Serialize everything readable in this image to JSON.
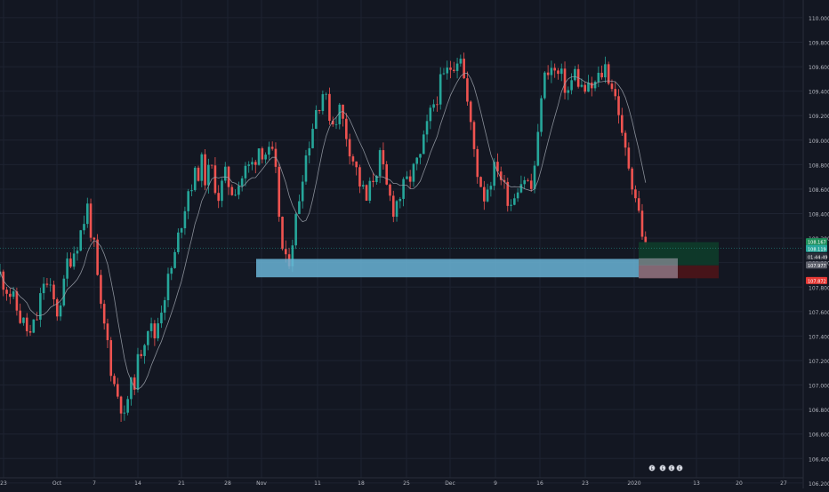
{
  "chart_data": {
    "type": "candlestick",
    "instrument_note": "",
    "ylim": [
      106.17,
      110.13
    ],
    "y_ticks": [
      "110.000",
      "109.800",
      "109.600",
      "109.400",
      "109.200",
      "109.000",
      "108.800",
      "108.600",
      "108.400",
      "108.200",
      "108.000",
      "107.800",
      "107.600",
      "107.400",
      "107.200",
      "107.000",
      "106.800",
      "106.600",
      "106.400",
      "106.200"
    ],
    "x_ticks": [
      "23",
      "Oct",
      "7",
      "14",
      "21",
      "28",
      "Nov",
      "11",
      "18",
      "25",
      "Dec",
      "9",
      "16",
      "23",
      "2020",
      "13",
      "20",
      "27"
    ],
    "grid": true,
    "colors": {
      "background": "#131722",
      "grid": "#1e2331",
      "up": "#26a69a",
      "down": "#ef5350",
      "moving_average": "#9ea3ad",
      "demand_zone": "#6ab4d6",
      "profit_zone": "#0e3a2a",
      "loss_zone": "#4a1419",
      "axis_text": "#b2b5be"
    },
    "price_path": [
      [
        0,
        107.9
      ],
      [
        3,
        107.75
      ],
      [
        6,
        107.55
      ],
      [
        9,
        107.4
      ],
      [
        11,
        107.55
      ],
      [
        13,
        107.85
      ],
      [
        15,
        107.75
      ],
      [
        17,
        107.6
      ],
      [
        19,
        107.8
      ],
      [
        20,
        108.0
      ],
      [
        22,
        108.1
      ],
      [
        24,
        108.25
      ],
      [
        26,
        108.45
      ],
      [
        28,
        108.1
      ],
      [
        30,
        107.6
      ],
      [
        32,
        107.35
      ],
      [
        33,
        107.15
      ],
      [
        34,
        107.0
      ],
      [
        36,
        106.85
      ],
      [
        37,
        106.7
      ],
      [
        38,
        106.9
      ],
      [
        40,
        107.05
      ],
      [
        42,
        107.3
      ],
      [
        44,
        107.5
      ],
      [
        46,
        107.4
      ],
      [
        48,
        107.65
      ],
      [
        50,
        107.85
      ],
      [
        52,
        108.05
      ],
      [
        54,
        108.35
      ],
      [
        56,
        108.6
      ],
      [
        58,
        108.7
      ],
      [
        60,
        108.8
      ],
      [
        61,
        108.7
      ],
      [
        63,
        108.75
      ],
      [
        65,
        108.55
      ],
      [
        67,
        108.7
      ],
      [
        69,
        108.6
      ],
      [
        71,
        108.65
      ],
      [
        73,
        108.75
      ],
      [
        75,
        108.8
      ],
      [
        77,
        108.95
      ],
      [
        79,
        108.9
      ],
      [
        81,
        108.85
      ],
      [
        82,
        108.7
      ],
      [
        83,
        108.4
      ],
      [
        84,
        108.1
      ],
      [
        85,
        107.98
      ],
      [
        86,
        108.05
      ],
      [
        88,
        108.35
      ],
      [
        90,
        108.75
      ],
      [
        92,
        109.0
      ],
      [
        94,
        109.25
      ],
      [
        96,
        109.4
      ],
      [
        97,
        109.3
      ],
      [
        99,
        109.15
      ],
      [
        101,
        109.25
      ],
      [
        103,
        109.05
      ],
      [
        105,
        108.85
      ],
      [
        107,
        108.65
      ],
      [
        109,
        108.5
      ],
      [
        111,
        108.7
      ],
      [
        113,
        108.85
      ],
      [
        115,
        108.6
      ],
      [
        117,
        108.45
      ],
      [
        119,
        108.55
      ],
      [
        121,
        108.65
      ],
      [
        123,
        108.75
      ],
      [
        125,
        108.85
      ],
      [
        127,
        109.1
      ],
      [
        129,
        109.3
      ],
      [
        131,
        109.45
      ],
      [
        133,
        109.55
      ],
      [
        135,
        109.65
      ],
      [
        137,
        109.72
      ],
      [
        138,
        109.5
      ],
      [
        140,
        109.1
      ],
      [
        142,
        108.75
      ],
      [
        144,
        108.55
      ],
      [
        146,
        108.7
      ],
      [
        148,
        108.8
      ],
      [
        150,
        108.6
      ],
      [
        152,
        108.5
      ],
      [
        154,
        108.65
      ],
      [
        156,
        108.7
      ],
      [
        158,
        108.6
      ],
      [
        160,
        109.0
      ],
      [
        161,
        109.4
      ],
      [
        163,
        109.6
      ],
      [
        165,
        109.55
      ],
      [
        167,
        109.5
      ],
      [
        169,
        109.4
      ],
      [
        171,
        109.55
      ],
      [
        173,
        109.42
      ],
      [
        175,
        109.4
      ],
      [
        177,
        109.45
      ],
      [
        179,
        109.55
      ],
      [
        180,
        109.6
      ],
      [
        182,
        109.45
      ],
      [
        184,
        109.25
      ],
      [
        185,
        109.0
      ],
      [
        187,
        108.8
      ],
      [
        189,
        108.55
      ],
      [
        191,
        108.25
      ],
      [
        192,
        108.1
      ]
    ],
    "demand_zone": {
      "y_top": 108.03,
      "y_bottom": 107.88,
      "label": ""
    },
    "position_tool": {
      "entry": 107.977,
      "target": 108.167,
      "stop": 107.872
    },
    "price_labels": [
      {
        "text": "108.167",
        "kind": "target"
      },
      {
        "text": "108.119",
        "kind": "current"
      },
      {
        "text": "01:44:49",
        "kind": "timer"
      },
      {
        "text": "107.977",
        "kind": "entry"
      },
      {
        "text": "107.872",
        "kind": "stop"
      }
    ],
    "bottom_markers": [
      "E",
      "E",
      "E",
      "E"
    ]
  }
}
